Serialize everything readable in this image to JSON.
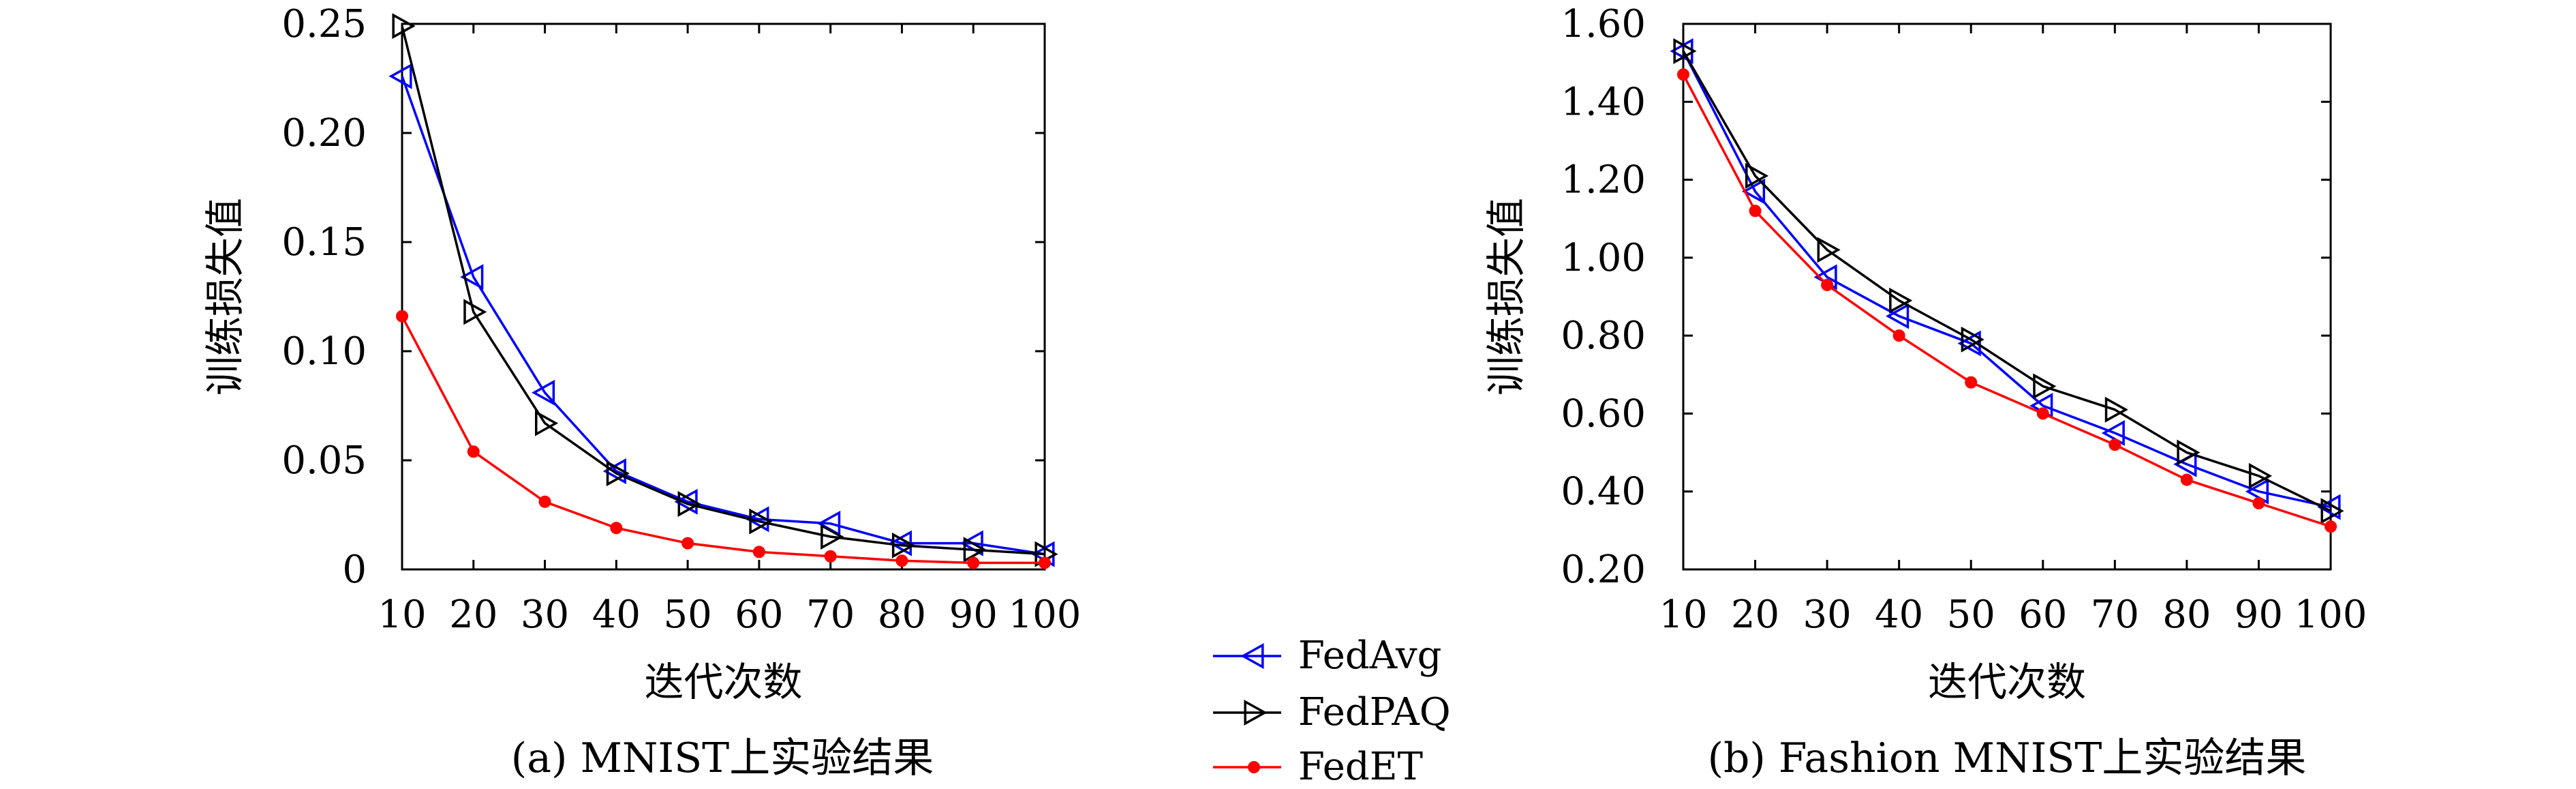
{
  "legend": {
    "entries": [
      {
        "name": "FedAvg",
        "color": "#0000ff",
        "marker": "triangle-left"
      },
      {
        "name": "FedPAQ",
        "color": "#000000",
        "marker": "triangle-right"
      },
      {
        "name": "FedET",
        "color": "#ff0000",
        "marker": "dot"
      }
    ]
  },
  "chart_data": [
    {
      "type": "line",
      "title": "(a) MNIST上实验结果",
      "xlabel": "迭代次数",
      "ylabel": "训练损失值",
      "x": [
        10,
        20,
        30,
        40,
        50,
        60,
        70,
        80,
        90,
        100
      ],
      "xlim": [
        10,
        100
      ],
      "ylim": [
        0,
        0.25
      ],
      "xticks": [
        "10",
        "20",
        "30",
        "40",
        "50",
        "60",
        "70",
        "80",
        "90",
        "100"
      ],
      "yticks": [
        {
          "value": 0,
          "label": "0"
        },
        {
          "value": 0.05,
          "label": "0.05"
        },
        {
          "value": 0.1,
          "label": "0.10"
        },
        {
          "value": 0.15,
          "label": "0.15"
        },
        {
          "value": 0.2,
          "label": "0.20"
        },
        {
          "value": 0.25,
          "label": "0.25"
        }
      ],
      "grid": false,
      "series": [
        {
          "name": "FedAvg",
          "values": [
            0.226,
            0.134,
            0.081,
            0.045,
            0.031,
            0.023,
            0.021,
            0.012,
            0.012,
            0.007
          ]
        },
        {
          "name": "FedPAQ",
          "values": [
            0.249,
            0.118,
            0.067,
            0.044,
            0.03,
            0.022,
            0.015,
            0.011,
            0.009,
            0.007
          ]
        },
        {
          "name": "FedET",
          "values": [
            0.116,
            0.054,
            0.031,
            0.019,
            0.012,
            0.008,
            0.006,
            0.004,
            0.003,
            0.003
          ]
        }
      ]
    },
    {
      "type": "line",
      "title": "(b) Fashion MNIST上实验结果",
      "xlabel": "迭代次数",
      "ylabel": "训练损失值",
      "x": [
        10,
        20,
        30,
        40,
        50,
        60,
        70,
        80,
        90,
        100
      ],
      "xlim": [
        10,
        100
      ],
      "ylim": [
        0.2,
        1.6
      ],
      "xticks": [
        "10",
        "20",
        "30",
        "40",
        "50",
        "60",
        "70",
        "80",
        "90",
        "100"
      ],
      "yticks": [
        {
          "value": 0.2,
          "label": "0.20"
        },
        {
          "value": 0.4,
          "label": "0.40"
        },
        {
          "value": 0.6,
          "label": "0.60"
        },
        {
          "value": 0.8,
          "label": "0.80"
        },
        {
          "value": 1.0,
          "label": "1.00"
        },
        {
          "value": 1.2,
          "label": "1.20"
        },
        {
          "value": 1.4,
          "label": "1.40"
        },
        {
          "value": 1.6,
          "label": "1.60"
        }
      ],
      "grid": false,
      "series": [
        {
          "name": "FedAvg",
          "values": [
            1.53,
            1.17,
            0.95,
            0.85,
            0.78,
            0.62,
            0.55,
            0.47,
            0.4,
            0.36
          ]
        },
        {
          "name": "FedPAQ",
          "values": [
            1.53,
            1.21,
            1.02,
            0.89,
            0.79,
            0.67,
            0.61,
            0.5,
            0.44,
            0.35
          ]
        },
        {
          "name": "FedET",
          "values": [
            1.47,
            1.12,
            0.93,
            0.8,
            0.68,
            0.6,
            0.52,
            0.43,
            0.37,
            0.31
          ]
        }
      ]
    }
  ]
}
